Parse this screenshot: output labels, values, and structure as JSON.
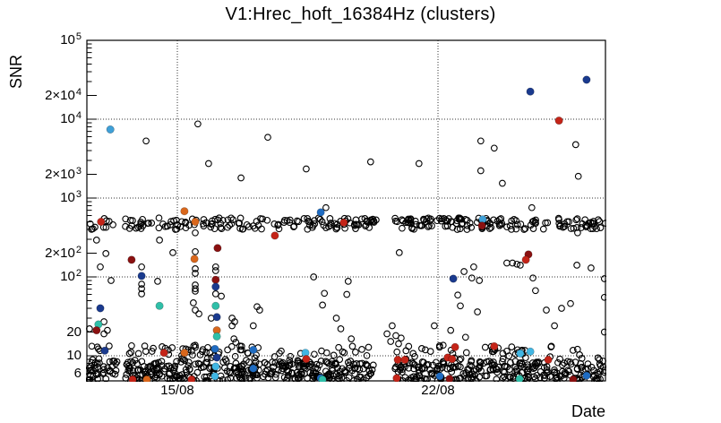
{
  "chart_data": {
    "type": "scatter",
    "title": "V1:Hrec_hoft_16384Hz (clusters)",
    "xlabel": "Date",
    "ylabel": "SNR",
    "x_unit": "days (0 = left edge; 15/08 = day 2.43; 22/08 = day 9.43)",
    "xlim": [
      0,
      13.93
    ],
    "ylim": [
      4.8,
      100000
    ],
    "y_scale": "log",
    "grid": {
      "horizontal_snr": [
        10,
        100,
        1000,
        10000
      ],
      "vertical_days": [
        2.43,
        9.43
      ]
    },
    "x_ticks": {
      "labeled": [
        {
          "label": "15/08",
          "day": 2.43
        },
        {
          "label": "22/08",
          "day": 9.43
        }
      ],
      "day_tick_offset": 0.43
    },
    "y_ticks": [
      {
        "base": "10",
        "sup": "5",
        "value": 100000
      },
      {
        "base": "2×10",
        "sup": "4",
        "value": 20000
      },
      {
        "base": "10",
        "sup": "4",
        "value": 10000
      },
      {
        "base": "2×10",
        "sup": "3",
        "value": 2000
      },
      {
        "base": "10",
        "sup": "3",
        "value": 1000
      },
      {
        "base": "2×10",
        "sup": "2",
        "value": 200
      },
      {
        "base": "10",
        "sup": "2",
        "value": 100
      },
      {
        "base": "20",
        "sup": "",
        "value": 20
      },
      {
        "base": "10",
        "sup": "",
        "value": 10
      },
      {
        "base": "6",
        "sup": "",
        "value": 6
      }
    ],
    "marker_colors": {
      "open": "none",
      "r": "#c42418",
      "dr": "#8a1111",
      "n": "#1a3a8e",
      "b": "#1f6cc2",
      "sb": "#3fa0d8",
      "cy": "#41b6e3",
      "t": "#2fbfa8",
      "or": "#d9671c"
    },
    "points_colored": [
      [
        0.63,
        7400,
        "sb"
      ],
      [
        11.91,
        22400,
        "n"
      ],
      [
        13.42,
        31600,
        "n"
      ],
      [
        12.68,
        9600,
        "r"
      ],
      [
        2.62,
        680,
        "or"
      ],
      [
        2.91,
        500,
        "or"
      ],
      [
        6.28,
        660,
        "b"
      ],
      [
        0.38,
        500,
        "r"
      ],
      [
        6.9,
        488,
        "r"
      ],
      [
        10.63,
        536,
        "sb"
      ],
      [
        10.61,
        447,
        "dr"
      ],
      [
        5.05,
        334,
        "r"
      ],
      [
        3.51,
        232,
        "dr"
      ],
      [
        1.2,
        165,
        "dr"
      ],
      [
        11.86,
        193,
        "dr"
      ],
      [
        11.79,
        165,
        "r"
      ],
      [
        1.47,
        103,
        "n"
      ],
      [
        9.84,
        95,
        "n"
      ],
      [
        3.46,
        92,
        "dr"
      ],
      [
        3.46,
        75,
        "n"
      ],
      [
        2.89,
        169,
        "or"
      ],
      [
        0.36,
        40,
        "n"
      ],
      [
        3.46,
        43,
        "t"
      ],
      [
        1.95,
        43,
        "t"
      ],
      [
        3.49,
        31,
        "n"
      ],
      [
        0.31,
        25,
        "t"
      ],
      [
        0.26,
        21,
        "dr"
      ],
      [
        3.49,
        21,
        "or"
      ],
      [
        3.49,
        17.6,
        "t"
      ],
      [
        0.48,
        11.6,
        "n"
      ],
      [
        3.44,
        12.2,
        "b"
      ],
      [
        4.47,
        11.9,
        "b"
      ],
      [
        2.07,
        10.9,
        "r"
      ],
      [
        2.62,
        10.9,
        "or"
      ],
      [
        3.49,
        9.5,
        "n"
      ],
      [
        3.46,
        7.3,
        "cy"
      ],
      [
        3.44,
        5.5,
        "cy"
      ],
      [
        4.47,
        6.9,
        "b"
      ],
      [
        1.23,
        5.0,
        "r"
      ],
      [
        1.61,
        5.0,
        "or"
      ],
      [
        2.81,
        5.0,
        "r"
      ],
      [
        5.87,
        10.9,
        "cy"
      ],
      [
        5.89,
        9.1,
        "r"
      ],
      [
        6.28,
        5.2,
        "b"
      ],
      [
        6.33,
        5.0,
        "t"
      ],
      [
        8.32,
        5.2,
        "r"
      ],
      [
        9.48,
        5.5,
        "b"
      ],
      [
        9.74,
        5.1,
        "dr"
      ],
      [
        11.62,
        5.1,
        "t"
      ],
      [
        13.06,
        5.0,
        "dr"
      ],
      [
        13.42,
        5.6,
        "b"
      ],
      [
        9.89,
        12.9,
        "r"
      ],
      [
        9.69,
        9.5,
        "r"
      ],
      [
        8.35,
        8.9,
        "r"
      ],
      [
        8.54,
        8.9,
        "r"
      ],
      [
        10.94,
        13.2,
        "r"
      ],
      [
        11.64,
        10.7,
        "cy"
      ],
      [
        11.91,
        11.3,
        "cy"
      ],
      [
        12.39,
        8.9,
        "r"
      ],
      [
        9.81,
        9.1,
        "r"
      ]
    ],
    "points_open": [
      [
        1.59,
        5300
      ],
      [
        2.98,
        8700
      ],
      [
        4.86,
        5900
      ],
      [
        3.27,
        2740
      ],
      [
        4.14,
        1800
      ],
      [
        5.89,
        2340
      ],
      [
        7.62,
        2880
      ],
      [
        8.92,
        2740
      ],
      [
        10.58,
        5300
      ],
      [
        10.94,
        4300
      ],
      [
        10.58,
        2220
      ],
      [
        11.16,
        1540
      ],
      [
        13.13,
        4760
      ],
      [
        13.2,
        1890
      ],
      [
        11.95,
        755
      ],
      [
        6.42,
        755
      ],
      [
        13.18,
        362
      ],
      [
        8.39,
        203
      ],
      [
        0.26,
        293
      ],
      [
        1.95,
        293
      ],
      [
        0.51,
        198
      ],
      [
        0.36,
        134
      ],
      [
        0.65,
        90
      ],
      [
        2.31,
        203
      ],
      [
        1.47,
        134
      ],
      [
        1.47,
        81
      ],
      [
        1.47,
        71
      ],
      [
        1.47,
        61
      ],
      [
        1.9,
        88
      ],
      [
        2.91,
        362
      ],
      [
        2.91,
        209
      ],
      [
        2.91,
        127
      ],
      [
        2.91,
        111
      ],
      [
        2.91,
        79
      ],
      [
        2.91,
        71
      ],
      [
        2.91,
        66
      ],
      [
        2.86,
        47
      ],
      [
        2.91,
        38
      ],
      [
        3.01,
        34
      ],
      [
        2.91,
        13.6
      ],
      [
        2.72,
        11.9
      ],
      [
        3.1,
        11.3
      ],
      [
        3.46,
        134
      ],
      [
        3.46,
        120
      ],
      [
        3.46,
        61
      ],
      [
        3.61,
        57
      ],
      [
        3.34,
        30
      ],
      [
        3.9,
        30
      ],
      [
        3.97,
        27
      ],
      [
        3.9,
        24
      ],
      [
        3.95,
        16.4
      ],
      [
        4.0,
        14.8
      ],
      [
        3.78,
        11.9
      ],
      [
        4.11,
        13.3
      ],
      [
        4.16,
        11.9
      ],
      [
        4.57,
        42
      ],
      [
        4.64,
        38
      ],
      [
        4.47,
        24
      ],
      [
        6.09,
        100
      ],
      [
        6.38,
        62
      ],
      [
        6.33,
        44
      ],
      [
        7.02,
        88
      ],
      [
        6.98,
        60
      ],
      [
        6.7,
        30
      ],
      [
        6.82,
        22
      ],
      [
        7.1,
        16.4
      ],
      [
        0.46,
        27
      ],
      [
        0.55,
        21
      ],
      [
        0.46,
        19
      ],
      [
        0.07,
        22
      ],
      [
        0.31,
        12.2
      ],
      [
        0.6,
        13.3
      ],
      [
        10.13,
        117
      ],
      [
        10.39,
        134
      ],
      [
        10.34,
        97
      ],
      [
        10.54,
        90
      ],
      [
        9.96,
        59
      ],
      [
        10.03,
        43
      ],
      [
        10.49,
        36
      ],
      [
        9.33,
        24
      ],
      [
        9.77,
        21
      ],
      [
        10.17,
        17.2
      ],
      [
        9.57,
        13.6
      ],
      [
        9.09,
        11.9
      ],
      [
        8.76,
        10.7
      ],
      [
        8.06,
        19
      ],
      [
        8.3,
        18
      ],
      [
        8.44,
        16.8
      ],
      [
        8.16,
        15.2
      ],
      [
        8.37,
        14.2
      ],
      [
        8.2,
        24
      ],
      [
        11.28,
        150
      ],
      [
        11.43,
        150
      ],
      [
        11.55,
        145
      ],
      [
        11.64,
        141
      ],
      [
        13.16,
        141
      ],
      [
        13.54,
        130
      ],
      [
        11.98,
        97
      ],
      [
        12.05,
        67
      ],
      [
        12.34,
        38
      ],
      [
        12.75,
        40
      ],
      [
        12.99,
        46
      ],
      [
        12.56,
        24
      ],
      [
        13.9,
        55
      ],
      [
        13.9,
        20
      ],
      [
        13.9,
        95
      ]
    ],
    "dense_clusters": [
      {
        "name": "main-band",
        "marker": "open",
        "x_range": [
          0,
          13.93
        ],
        "x_gaps": [
          [
            0.82,
            1.01
          ],
          [
            7.77,
            8.25
          ]
        ],
        "snr_range": [
          400,
          560
        ],
        "count": 300,
        "seed": 7
      },
      {
        "name": "noise-floor-core",
        "marker": "open",
        "x_range": [
          0,
          13.93
        ],
        "x_gaps": [
          [
            0.82,
            1.01
          ],
          [
            7.7,
            8.27
          ]
        ],
        "snr_range": [
          4.8,
          8.5
        ],
        "count": 640,
        "seed": 11
      },
      {
        "name": "noise-floor-top",
        "marker": "open",
        "x_range": [
          0,
          13.93
        ],
        "x_gaps": [
          [
            0.82,
            1.01
          ],
          [
            7.7,
            8.27
          ]
        ],
        "snr_range": [
          8.5,
          13.5
        ],
        "count": 130,
        "seed": 23
      }
    ]
  }
}
